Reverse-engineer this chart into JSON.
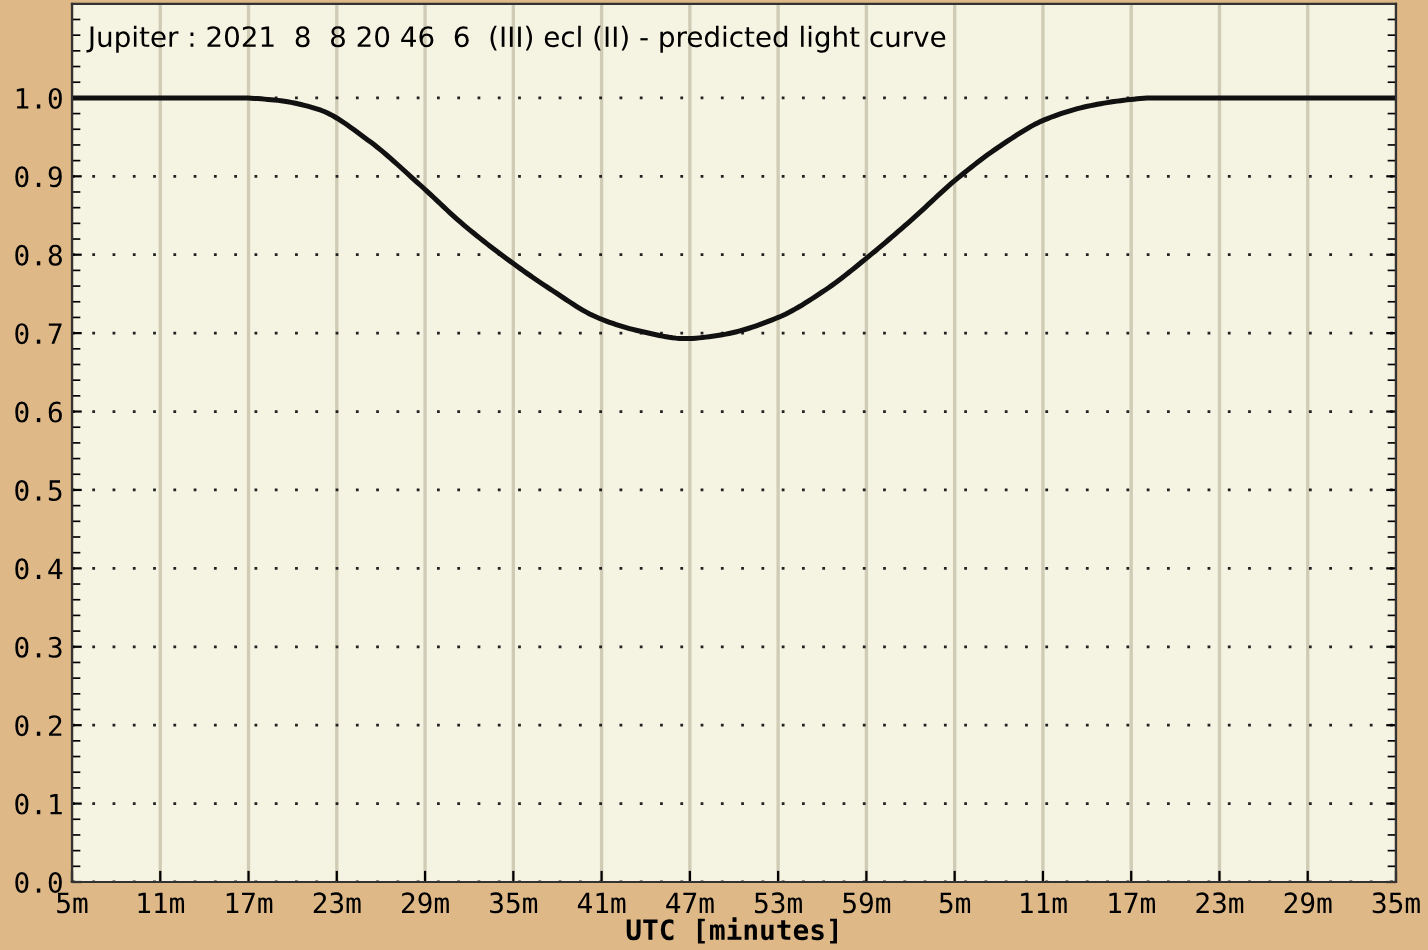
{
  "chart_data": {
    "type": "line",
    "title": "Jupiter : 2021  8  8 20 46  6  (III) ecl (II) - predicted light curve",
    "xlabel": "UTC [minutes]",
    "x": [
      "2021-08-08T20:05",
      "2021-08-08T20:16:24",
      "2021-08-08T20:18:54",
      "2021-08-08T20:21:48",
      "2021-08-08T20:25:12",
      "2021-08-08T20:28:36",
      "2021-08-08T20:31:30",
      "2021-08-08T20:34:24",
      "2021-08-08T20:37:36",
      "2021-08-08T20:40:42",
      "2021-08-08T20:43:30",
      "2021-08-08T20:46:42",
      "2021-08-08T20:49:12",
      "2021-08-08T20:53",
      "2021-08-08T20:56:12",
      "2021-08-08T20:59:06",
      "2021-08-08T21:02:06",
      "2021-08-08T21:05:06",
      "2021-08-08T21:08:12",
      "2021-08-08T21:11:06",
      "2021-08-08T21:14:12",
      "2021-08-08T21:17",
      "2021-08-08T21:18:18",
      "2021-08-08T21:35"
    ],
    "series": [
      {
        "color": "#111111",
        "values": [
          1.0,
          1.0,
          0.997,
          0.985,
          0.945,
          0.89,
          0.84,
          0.797,
          0.755,
          0.72,
          0.703,
          0.693,
          0.698,
          0.72,
          0.755,
          0.797,
          0.845,
          0.896,
          0.94,
          0.972,
          0.99,
          0.998,
          1.0,
          1.0
        ]
      }
    ],
    "xlim": [
      "2021-08-08T20:05",
      "2021-08-08T21:35"
    ],
    "xticks": [
      {
        "value": "2021-08-08T20:05",
        "label": "5m"
      },
      {
        "value": "2021-08-08T20:11",
        "label": "11m"
      },
      {
        "value": "2021-08-08T20:17",
        "label": "17m"
      },
      {
        "value": "2021-08-08T20:23",
        "label": "23m"
      },
      {
        "value": "2021-08-08T20:29",
        "label": "29m"
      },
      {
        "value": "2021-08-08T20:35",
        "label": "35m"
      },
      {
        "value": "2021-08-08T20:41",
        "label": "41m"
      },
      {
        "value": "2021-08-08T20:47",
        "label": "47m"
      },
      {
        "value": "2021-08-08T20:53",
        "label": "53m"
      },
      {
        "value": "2021-08-08T20:59",
        "label": "59m"
      },
      {
        "value": "2021-08-08T21:05",
        "label": "5m"
      },
      {
        "value": "2021-08-08T21:11",
        "label": "11m"
      },
      {
        "value": "2021-08-08T21:17",
        "label": "17m"
      },
      {
        "value": "2021-08-08T21:23",
        "label": "23m"
      },
      {
        "value": "2021-08-08T21:29",
        "label": "29m"
      },
      {
        "value": "2021-08-08T21:35",
        "label": "35m"
      }
    ],
    "ylim": [
      0,
      1.12
    ],
    "yticks": [
      {
        "value": 0,
        "label": "0.0"
      },
      {
        "value": 0.1,
        "label": "0.1"
      },
      {
        "value": 0.2,
        "label": "0.2"
      },
      {
        "value": 0.3,
        "label": "0.3"
      },
      {
        "value": 0.4,
        "label": "0.4"
      },
      {
        "value": 0.5,
        "label": "0.5"
      },
      {
        "value": 0.6,
        "label": "0.6"
      },
      {
        "value": 0.7,
        "label": "0.7"
      },
      {
        "value": 0.8,
        "label": "0.8"
      },
      {
        "value": 0.9,
        "label": "0.9"
      },
      {
        "value": 1.0,
        "label": "1.0"
      }
    ],
    "grid": true,
    "marker": "none",
    "line_style": "solid"
  }
}
